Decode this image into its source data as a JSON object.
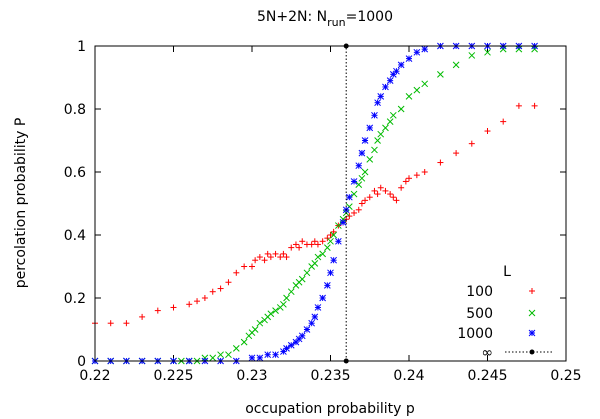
{
  "chart_data": {
    "type": "scatter",
    "title": {
      "main": "5N+2N: N",
      "sub": "run",
      "suffix": "=1000"
    },
    "xlabel": "occupation probability p",
    "ylabel": "percolation probability P",
    "xlim": [
      0.22,
      0.25
    ],
    "ylim": [
      0,
      1
    ],
    "xticks": [
      0.22,
      0.225,
      0.23,
      0.235,
      0.24,
      0.245,
      0.25
    ],
    "xtick_labels": [
      "0.22",
      "0.225",
      "0.23",
      "0.235",
      "0.24",
      "0.245",
      "0.25"
    ],
    "yticks": [
      0,
      0.2,
      0.4,
      0.6,
      0.8,
      1
    ],
    "ytick_labels": [
      "0",
      "0.2",
      "0.4",
      "0.6",
      "0.8",
      "1"
    ],
    "grid": false,
    "legend": {
      "title": "L",
      "position": "bottom-right"
    },
    "series": [
      {
        "name": "100",
        "marker": "plus",
        "color": "#ff0000",
        "points": [
          [
            0.22,
            0.12
          ],
          [
            0.221,
            0.12
          ],
          [
            0.222,
            0.12
          ],
          [
            0.223,
            0.14
          ],
          [
            0.224,
            0.16
          ],
          [
            0.225,
            0.17
          ],
          [
            0.226,
            0.18
          ],
          [
            0.2265,
            0.19
          ],
          [
            0.227,
            0.2
          ],
          [
            0.2275,
            0.22
          ],
          [
            0.228,
            0.23
          ],
          [
            0.2285,
            0.25
          ],
          [
            0.229,
            0.28
          ],
          [
            0.2295,
            0.3
          ],
          [
            0.23,
            0.3
          ],
          [
            0.2302,
            0.32
          ],
          [
            0.2305,
            0.33
          ],
          [
            0.2308,
            0.32
          ],
          [
            0.231,
            0.34
          ],
          [
            0.2312,
            0.33
          ],
          [
            0.2315,
            0.34
          ],
          [
            0.2318,
            0.33
          ],
          [
            0.232,
            0.34
          ],
          [
            0.2322,
            0.33
          ],
          [
            0.2325,
            0.36
          ],
          [
            0.2328,
            0.37
          ],
          [
            0.233,
            0.36
          ],
          [
            0.2332,
            0.38
          ],
          [
            0.2335,
            0.37
          ],
          [
            0.2338,
            0.37
          ],
          [
            0.234,
            0.38
          ],
          [
            0.2342,
            0.37
          ],
          [
            0.2345,
            0.38
          ],
          [
            0.2348,
            0.39
          ],
          [
            0.235,
            0.4
          ],
          [
            0.2352,
            0.41
          ],
          [
            0.2355,
            0.43
          ],
          [
            0.2358,
            0.44
          ],
          [
            0.236,
            0.45
          ],
          [
            0.2362,
            0.46
          ],
          [
            0.2365,
            0.47
          ],
          [
            0.2368,
            0.48
          ],
          [
            0.237,
            0.5
          ],
          [
            0.2372,
            0.51
          ],
          [
            0.2375,
            0.52
          ],
          [
            0.2378,
            0.54
          ],
          [
            0.238,
            0.53
          ],
          [
            0.2382,
            0.55
          ],
          [
            0.2385,
            0.54
          ],
          [
            0.2388,
            0.53
          ],
          [
            0.239,
            0.52
          ],
          [
            0.2392,
            0.51
          ],
          [
            0.2395,
            0.55
          ],
          [
            0.2398,
            0.57
          ],
          [
            0.24,
            0.58
          ],
          [
            0.2405,
            0.59
          ],
          [
            0.241,
            0.6
          ],
          [
            0.242,
            0.63
          ],
          [
            0.243,
            0.66
          ],
          [
            0.244,
            0.69
          ],
          [
            0.245,
            0.73
          ],
          [
            0.246,
            0.76
          ],
          [
            0.247,
            0.81
          ],
          [
            0.248,
            0.81
          ]
        ]
      },
      {
        "name": "500",
        "marker": "cross",
        "color": "#00bb00",
        "points": [
          [
            0.22,
            0.0
          ],
          [
            0.221,
            0.0
          ],
          [
            0.222,
            0.0
          ],
          [
            0.223,
            0.0
          ],
          [
            0.224,
            0.0
          ],
          [
            0.225,
            0.0
          ],
          [
            0.2255,
            0.0
          ],
          [
            0.226,
            0.0
          ],
          [
            0.2265,
            0.0
          ],
          [
            0.227,
            0.01
          ],
          [
            0.2275,
            0.01
          ],
          [
            0.228,
            0.02
          ],
          [
            0.2285,
            0.02
          ],
          [
            0.229,
            0.04
          ],
          [
            0.2295,
            0.06
          ],
          [
            0.2298,
            0.08
          ],
          [
            0.23,
            0.09
          ],
          [
            0.2302,
            0.1
          ],
          [
            0.2305,
            0.12
          ],
          [
            0.2308,
            0.13
          ],
          [
            0.231,
            0.14
          ],
          [
            0.2312,
            0.15
          ],
          [
            0.2315,
            0.16
          ],
          [
            0.2318,
            0.17
          ],
          [
            0.232,
            0.18
          ],
          [
            0.2322,
            0.2
          ],
          [
            0.2325,
            0.22
          ],
          [
            0.2328,
            0.24
          ],
          [
            0.233,
            0.25
          ],
          [
            0.2332,
            0.26
          ],
          [
            0.2335,
            0.28
          ],
          [
            0.2338,
            0.3
          ],
          [
            0.234,
            0.31
          ],
          [
            0.2342,
            0.33
          ],
          [
            0.2345,
            0.34
          ],
          [
            0.2348,
            0.36
          ],
          [
            0.235,
            0.38
          ],
          [
            0.2352,
            0.4
          ],
          [
            0.2355,
            0.43
          ],
          [
            0.2358,
            0.45
          ],
          [
            0.236,
            0.47
          ],
          [
            0.2362,
            0.49
          ],
          [
            0.2365,
            0.53
          ],
          [
            0.2368,
            0.56
          ],
          [
            0.237,
            0.58
          ],
          [
            0.2372,
            0.6
          ],
          [
            0.2375,
            0.64
          ],
          [
            0.2378,
            0.67
          ],
          [
            0.238,
            0.7
          ],
          [
            0.2382,
            0.72
          ],
          [
            0.2385,
            0.74
          ],
          [
            0.2388,
            0.76
          ],
          [
            0.239,
            0.78
          ],
          [
            0.2395,
            0.8
          ],
          [
            0.24,
            0.84
          ],
          [
            0.2405,
            0.86
          ],
          [
            0.241,
            0.88
          ],
          [
            0.242,
            0.91
          ],
          [
            0.243,
            0.94
          ],
          [
            0.244,
            0.97
          ],
          [
            0.245,
            0.98
          ],
          [
            0.246,
            0.99
          ],
          [
            0.247,
            0.99
          ],
          [
            0.248,
            0.99
          ]
        ]
      },
      {
        "name": "1000",
        "marker": "star",
        "color": "#0000ff",
        "points": [
          [
            0.22,
            0.0
          ],
          [
            0.221,
            0.0
          ],
          [
            0.222,
            0.0
          ],
          [
            0.223,
            0.0
          ],
          [
            0.224,
            0.0
          ],
          [
            0.225,
            0.0
          ],
          [
            0.226,
            0.0
          ],
          [
            0.227,
            0.0
          ],
          [
            0.228,
            0.0
          ],
          [
            0.229,
            0.0
          ],
          [
            0.23,
            0.01
          ],
          [
            0.2305,
            0.01
          ],
          [
            0.231,
            0.02
          ],
          [
            0.2315,
            0.02
          ],
          [
            0.232,
            0.03
          ],
          [
            0.2322,
            0.04
          ],
          [
            0.2325,
            0.05
          ],
          [
            0.2328,
            0.06
          ],
          [
            0.233,
            0.07
          ],
          [
            0.2332,
            0.08
          ],
          [
            0.2335,
            0.1
          ],
          [
            0.2338,
            0.12
          ],
          [
            0.234,
            0.14
          ],
          [
            0.2342,
            0.17
          ],
          [
            0.2345,
            0.2
          ],
          [
            0.2348,
            0.24
          ],
          [
            0.235,
            0.28
          ],
          [
            0.2352,
            0.32
          ],
          [
            0.2355,
            0.38
          ],
          [
            0.2358,
            0.44
          ],
          [
            0.236,
            0.48
          ],
          [
            0.2362,
            0.52
          ],
          [
            0.2365,
            0.57
          ],
          [
            0.2368,
            0.62
          ],
          [
            0.237,
            0.66
          ],
          [
            0.2372,
            0.7
          ],
          [
            0.2375,
            0.74
          ],
          [
            0.2378,
            0.78
          ],
          [
            0.238,
            0.82
          ],
          [
            0.2382,
            0.84
          ],
          [
            0.2385,
            0.87
          ],
          [
            0.2388,
            0.89
          ],
          [
            0.239,
            0.91
          ],
          [
            0.2392,
            0.92
          ],
          [
            0.2395,
            0.94
          ],
          [
            0.24,
            0.96
          ],
          [
            0.2405,
            0.98
          ],
          [
            0.241,
            0.99
          ],
          [
            0.242,
            1.0
          ],
          [
            0.243,
            1.0
          ],
          [
            0.244,
            1.0
          ],
          [
            0.245,
            1.0
          ],
          [
            0.246,
            1.0
          ],
          [
            0.247,
            1.0
          ],
          [
            0.248,
            1.0
          ]
        ]
      },
      {
        "name": "∞",
        "marker": "line-dot",
        "color": "#000000",
        "x_critical": 0.236,
        "points": [
          [
            0.236,
            0
          ],
          [
            0.236,
            1
          ]
        ]
      }
    ]
  }
}
